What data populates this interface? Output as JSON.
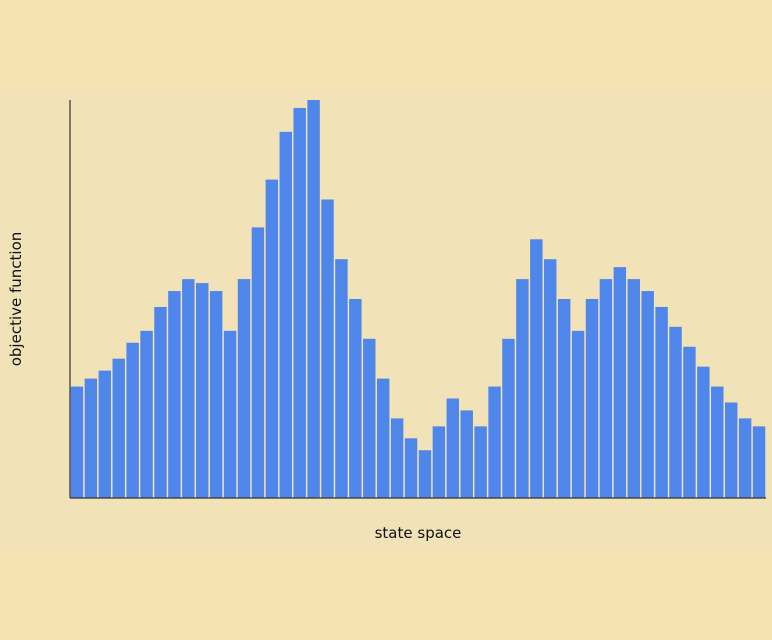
{
  "chart_data": {
    "type": "bar",
    "title": "",
    "xlabel": "state space",
    "ylabel": "objective function",
    "bar_color": "#4f86ea",
    "axis_color": "#333333",
    "background_color": "#f5e3b3",
    "panel_color": "#f1e2b8",
    "grid": false,
    "values": [
      28,
      30,
      32,
      35,
      39,
      42,
      48,
      52,
      55,
      54,
      52,
      42,
      55,
      68,
      80,
      92,
      98,
      100,
      75,
      60,
      50,
      40,
      30,
      20,
      15,
      12,
      18,
      25,
      22,
      18,
      28,
      40,
      55,
      65,
      60,
      50,
      42,
      50,
      55,
      58,
      55,
      52,
      48,
      43,
      38,
      33,
      28,
      24,
      20,
      18
    ],
    "ylim": [
      0,
      100
    ]
  }
}
